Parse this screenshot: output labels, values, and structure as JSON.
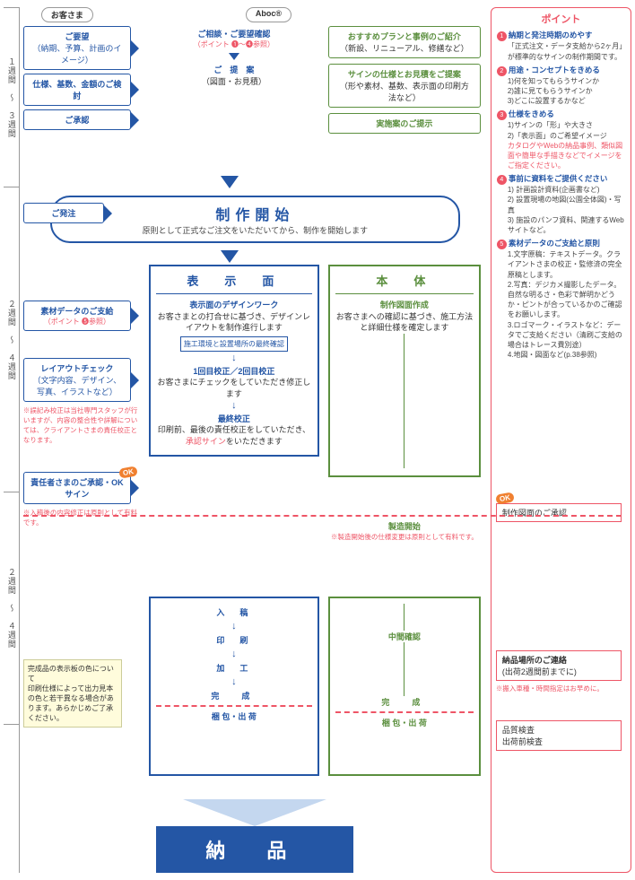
{
  "headers": {
    "customer": "お客さま",
    "company": "Aboc®"
  },
  "timeline": [
    "１週間　〜　３週間",
    "２週間　〜　４週間",
    "２週間　〜　４週間"
  ],
  "sidebar": {
    "title": "ポイント",
    "items": [
      {
        "h": "納期と発注時期のめやす",
        "s": "「正式注文・データ支給から2ヶ月」が標準的なサインの制作期間です。"
      },
      {
        "h": "用途・コンセプトをきめる",
        "s": "1)何を知ってもらうサインか\n2)誰に見てもらうサインか\n3)どこに設置するかなど"
      },
      {
        "h": "仕様をきめる",
        "s": "1)サインの「形」や大きさ\n2)「表示面」のご希望イメージ",
        "r": "カタログやWebの納品事例、類似図面や簡単な手描きなどでイメージをご指定ください。"
      },
      {
        "h": "事前に資料をご提供ください",
        "s": "1) 計画設計資料(企画書など)\n2) 設置現場の地図(公園全体図)・写真\n3) 施設のパンフ資料、関連するWebサイトなど。"
      },
      {
        "h": "素材データのご支給と原則",
        "s": "1.文字原稿：テキストデータ。クライアントさまの校正・監修済の完全原稿とします。\n2.写真：デジカメ撮影したデータ。自然な明るさ・色彩で鮮明かどうか・ピントが合っているかのご確認をお願いします。\n3.ロゴマーク・イラストなど：データでご支給ください（清刷ご支給の場合はトレース費別途）\n4.地図・図面など(p.38参照)"
      }
    ]
  },
  "p1": {
    "c1": {
      "t": "ご要望",
      "s": "（納期、予算、計画のイメージ）"
    },
    "c2": {
      "t": "仕様、基数、金額のご検討"
    },
    "c3": {
      "t": "ご承認"
    },
    "m1": {
      "t": "ご相談・ご要望確認",
      "s": "（ポイント ❶〜❹参照）"
    },
    "m2": {
      "t": "ご　提　案",
      "s": "（図面・お見積）"
    },
    "r1": {
      "t": "おすすめプランと事例のご紹介",
      "s": "（新設、リニューアル、修繕など）"
    },
    "r2": {
      "t": "サインの仕様とお見積をご提案",
      "s": "（形や素材、基数、表示面の印刷方法など）"
    },
    "r3": {
      "t": "実施案のご提示"
    }
  },
  "order": "ご発注",
  "start": {
    "t": "制作開始",
    "s": "原則として正式なご注文をいただいてから、制作を開始します"
  },
  "panels": {
    "display": "表　示　面",
    "body": "本　体"
  },
  "p2": {
    "c1": {
      "t": "素材データのご支給",
      "s": "（ポイント ❺参照）"
    },
    "c2": {
      "t": "レイアウトチェック",
      "s": "（文字内容、デザイン、写真、イラストなど）",
      "n": "※誤記み校正は当社専門スタッフが行いますが、内容の整合性や詳解については、クライアントさまの責任校正となります。"
    },
    "c3": {
      "t": "責任者さまのご承認・OKサイン",
      "n": "※入稿後の内容修正は原則として有料です。"
    },
    "d1": {
      "t": "表示面のデザインワーク",
      "s": "お客さまとの打合せに基づき、デザインレイアウトを制作進行します"
    },
    "d1n": "施工環境と設置場所の最終確認",
    "d2": {
      "t": "1回目校正／2回目校正",
      "s": "お客さまにチェックをしていただき修正します"
    },
    "d3": {
      "t": "最終校正",
      "s": "印刷前、最後の責任校正をしていただき、",
      "r": "承認サイン",
      "s2": "をいただきます"
    },
    "b1": {
      "t": "制作図面作成",
      "s": "お客さまへの確認に基づき、施工方法と詳細仕様を確定します"
    },
    "far1": "制作図面のご承認",
    "bstart": "製造開始",
    "bnote": "※製造開始後の仕様変更は原則として有料です。"
  },
  "p3": {
    "stages": [
      "入　稿",
      "印　刷",
      "加　工",
      "完　成",
      "梱 包・出 荷"
    ],
    "bstages": [
      "中間確認",
      "完　成",
      "梱 包・出 荷"
    ],
    "ynote": "完成品の表示板の色について\n印刷仕様によって出力見本の色と若干異なる場合があります。あらかじめご了承ください。",
    "far1": {
      "t": "納品場所のご連絡",
      "s": "(出荷2週間前までに)",
      "n": "※搬入車種・時間指定はお早めに。"
    },
    "far2": "品質検査\n出荷前検査"
  },
  "ok": "OK",
  "final": "納 品",
  "colors": {
    "blue": "#2456a5",
    "green": "#5b8f3e",
    "red": "#e56",
    "orange": "#f08030"
  }
}
